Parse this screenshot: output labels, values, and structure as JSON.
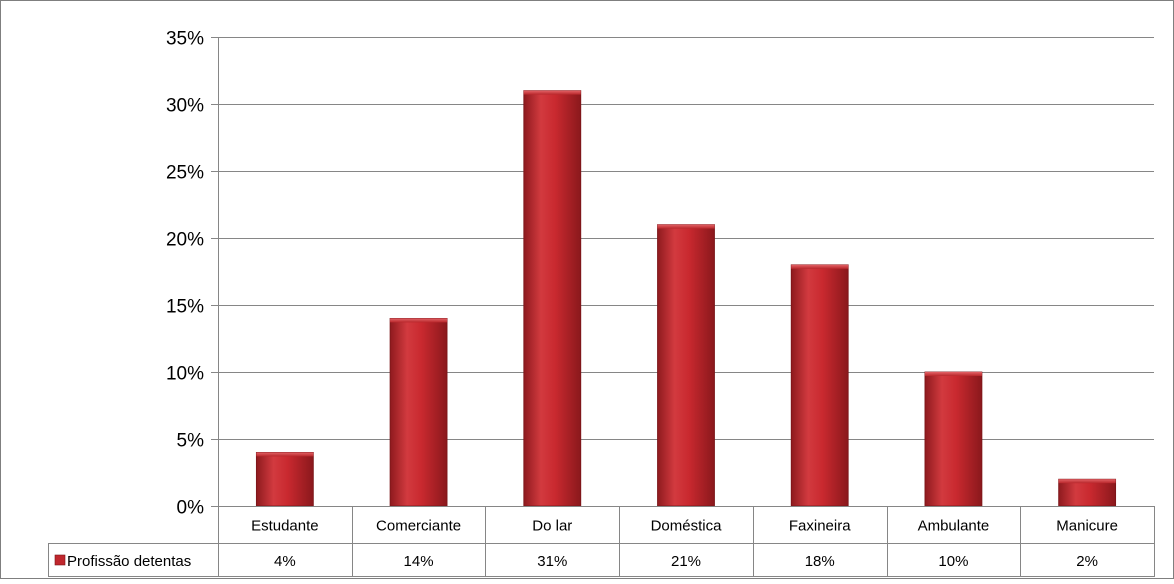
{
  "chart_data": {
    "type": "bar",
    "categories": [
      "Estudante",
      "Comerciante",
      "Do lar",
      "Doméstica",
      "Faxineira",
      "Ambulante",
      "Manicure"
    ],
    "series": [
      {
        "name": "Profissão detentas",
        "values": [
          4,
          14,
          31,
          21,
          18,
          10,
          2
        ],
        "labels": [
          "4%",
          "14%",
          "31%",
          "21%",
          "18%",
          "10%",
          "2%"
        ]
      }
    ],
    "y_ticks": [
      "0%",
      "5%",
      "10%",
      "15%",
      "20%",
      "25%",
      "30%",
      "35%"
    ],
    "ylim": [
      0,
      35
    ],
    "y_unit": "%",
    "grid": true,
    "legend": "data table, left of values row",
    "colors": {
      "bar": "#c0272d",
      "bar_dark": "#8e1a1e",
      "bar_light": "#e0555a",
      "grid": "#868686",
      "frame": "#7f7f7f"
    }
  }
}
